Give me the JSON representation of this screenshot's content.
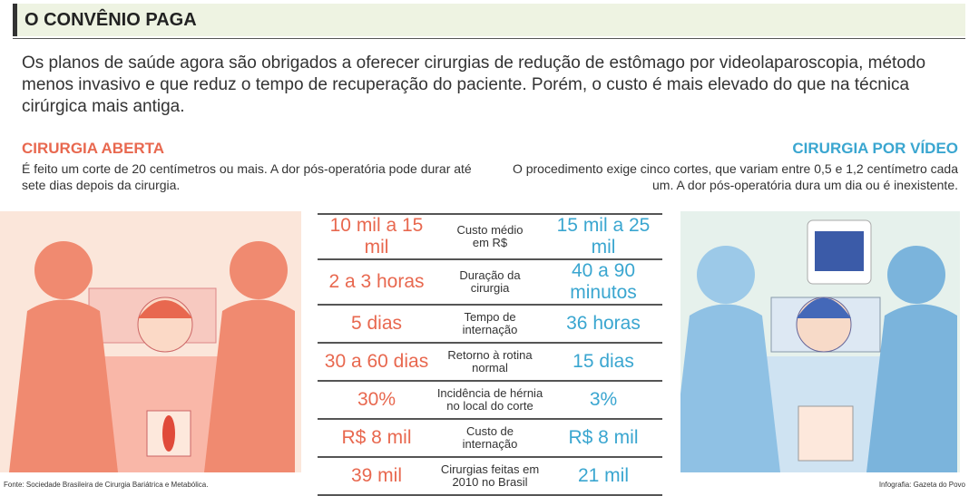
{
  "header": {
    "title": "O CONVÊNIO PAGA"
  },
  "intro": "Os planos de saúde agora são obrigados a oferecer cirurgias de redução de estômago por videolaparoscopia, método menos invasivo e que reduz o tempo de recuperação do paciente. Porém, o custo é mais elevado do que na técnica cirúrgica mais antiga.",
  "left": {
    "title": "CIRURGIA ABERTA",
    "description": "É feito um corte de 20 centímetros ou mais. A dor pós-operatória pode durar até sete dias depois da cirurgia."
  },
  "right": {
    "title": "CIRURGIA POR VÍDEO",
    "description": "O procedimento exige cinco cortes, que variam entre 0,5 e 1,2 centímetro cada um. A dor pós-operatória dura um dia ou é inexistente."
  },
  "table": {
    "rows": [
      [
        "10 mil a 15 mil",
        "Custo médio\nem R$",
        "15 mil a 25 mil"
      ],
      [
        "2 a 3 horas",
        "Duração da\ncirurgia",
        "40 a 90 minutos"
      ],
      [
        "5 dias",
        "Tempo de\ninternação",
        "36 horas"
      ],
      [
        "30 a 60 dias",
        "Retorno à rotina\nnormal",
        "15 dias"
      ],
      [
        "30%",
        "Incidência de hérnia\nno local do corte",
        "3%"
      ],
      [
        "R$ 8 mil",
        "Custo de\ninternação",
        "R$ 8 mil"
      ],
      [
        "39 mil",
        "Cirurgias feitas em\n2010 no Brasil",
        "21 mil"
      ]
    ]
  },
  "footer": {
    "source": "Fonte: Sociedade Brasileira de Cirurgia Bariátrica e Metabólica.",
    "credit": "Infografia: Gazeta do Povo"
  }
}
